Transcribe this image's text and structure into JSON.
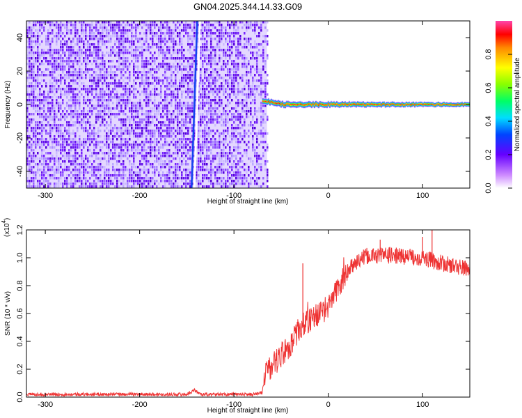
{
  "title": "GN04.2025.344.14.33.G09",
  "colorbar": {
    "label": "Normalized spectral amplitude",
    "ticks": [
      "0.0",
      "0.2",
      "0.4",
      "0.6",
      "0.8"
    ],
    "tick_values": [
      0.0,
      0.2,
      0.4,
      0.6,
      0.8
    ]
  },
  "chart_data": [
    {
      "type": "heatmap",
      "ylabel": "Frequency (Hz)",
      "xlabel": "Height of straight line (km)",
      "xlim": [
        -320,
        150
      ],
      "ylim": [
        -50,
        50
      ],
      "x_ticks": [
        -300,
        -200,
        -100,
        0,
        100
      ],
      "x_tick_labels": [
        "-300",
        "-200",
        "-100",
        "0",
        "100"
      ],
      "y_ticks": [
        -40,
        -20,
        0,
        20,
        40
      ],
      "y_tick_labels": [
        "-40",
        "-20",
        "0",
        "20",
        "40"
      ],
      "noise_region_x": [
        -320,
        -65
      ],
      "streak_x": [
        -142,
        -136
      ],
      "signal_band": {
        "x": [
          -70,
          150
        ],
        "center_freq": 0,
        "halfwidth_hz": 3
      }
    },
    {
      "type": "line",
      "ylabel": "SNR (10 * v/v)",
      "y_multiplier": "(x10",
      "y_multiplier_exp": "4",
      "xlabel": "Height of straight line (km)",
      "xlim": [
        -320,
        150
      ],
      "ylim": [
        0,
        1.2
      ],
      "x_ticks": [
        -300,
        -200,
        -100,
        0,
        100
      ],
      "x_tick_labels": [
        "-300",
        "-200",
        "-100",
        "0",
        "100"
      ],
      "y_ticks": [
        0.0,
        0.2,
        0.4,
        0.6,
        0.8,
        1.0,
        1.2
      ],
      "y_tick_labels": [
        "0.0",
        "0.2",
        "0.4",
        "0.6",
        "0.8",
        "1.0",
        "1.2"
      ],
      "series_color": "#ee3333",
      "envelope": {
        "x": [
          -320,
          -150,
          -142,
          -135,
          -80,
          -70,
          -67,
          -60,
          -50,
          -40,
          -30,
          -20,
          -10,
          0,
          10,
          20,
          30,
          40,
          60,
          80,
          100,
          120,
          140,
          150
        ],
        "y": [
          0.02,
          0.02,
          0.05,
          0.02,
          0.02,
          0.03,
          0.18,
          0.22,
          0.3,
          0.38,
          0.5,
          0.55,
          0.6,
          0.65,
          0.78,
          0.9,
          0.97,
          1.01,
          1.02,
          1.01,
          1.0,
          0.96,
          0.93,
          0.92
        ]
      },
      "spikes": [
        {
          "x": -27,
          "y": 0.96
        },
        {
          "x": 55,
          "y": 1.13
        },
        {
          "x": 100,
          "y": 1.15
        },
        {
          "x": 110,
          "y": 1.2
        }
      ]
    }
  ]
}
